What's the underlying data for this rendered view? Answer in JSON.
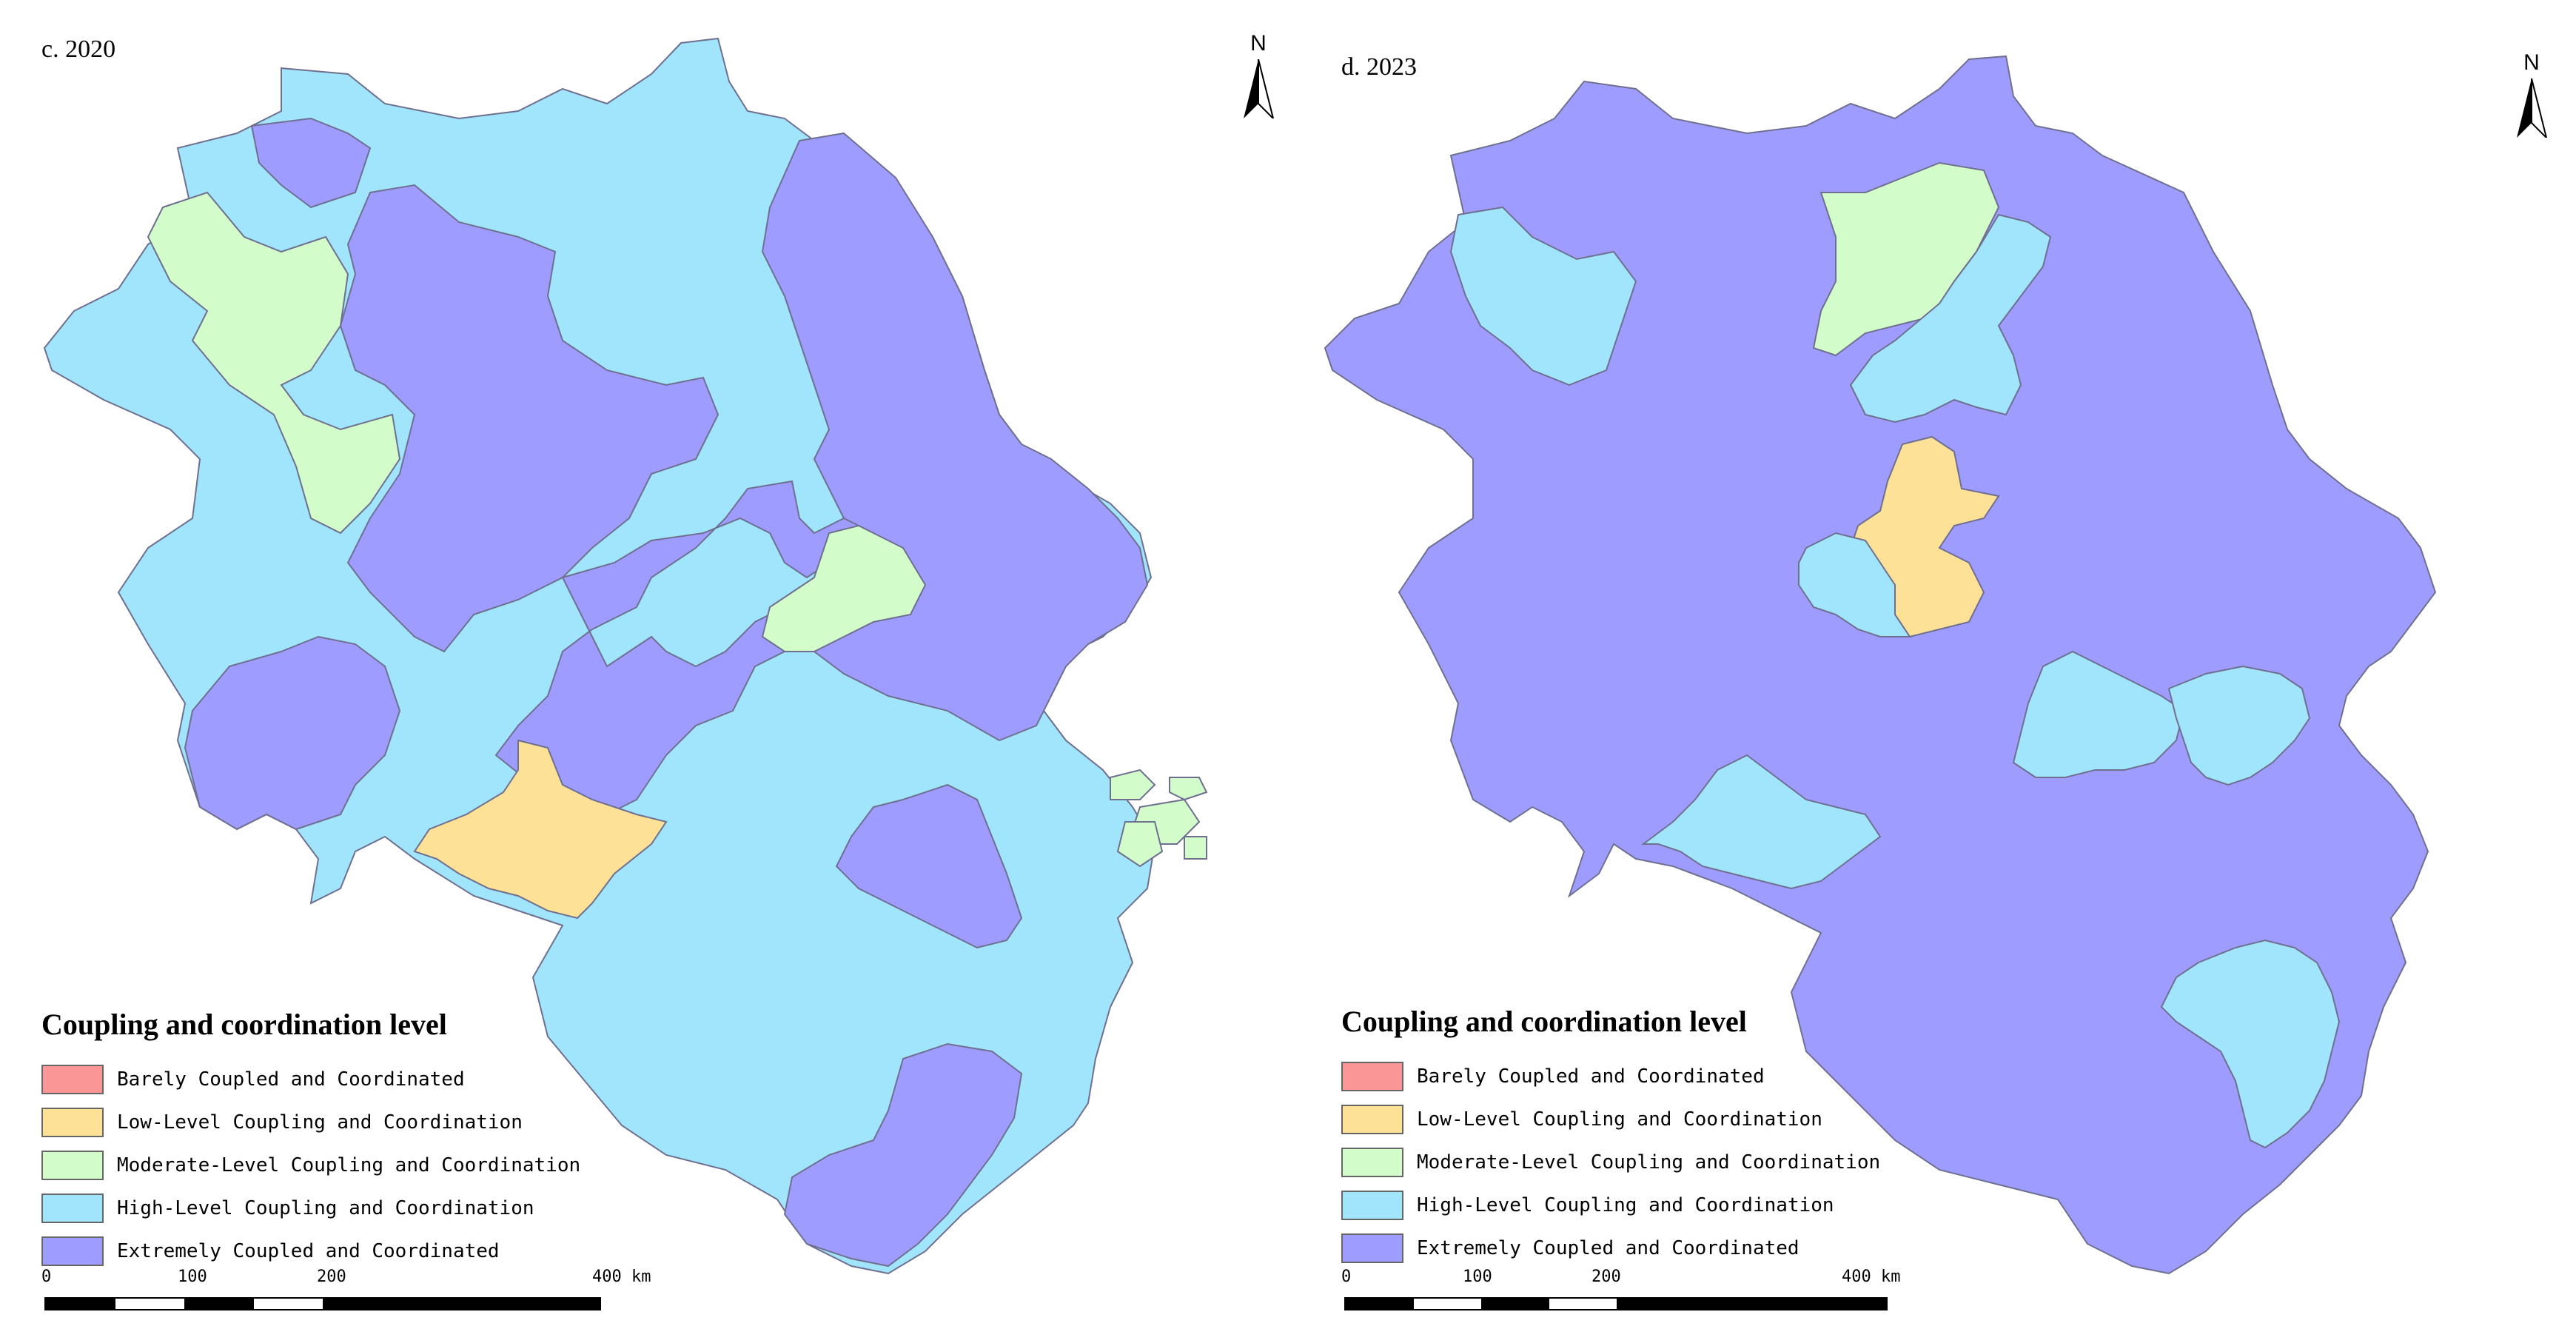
{
  "colors": {
    "barely": "#fa9696",
    "low": "#fde197",
    "moderate": "#d3fccb",
    "high": "#a0e5fb",
    "extreme": "#9e9dff",
    "boundary": "#6f6f8f",
    "sea": "#ffffff"
  },
  "legend": {
    "title": "Coupling and coordination level",
    "items": [
      {
        "key": "barely",
        "label": "Barely Coupled and Coordinated",
        "color": "#fa9696"
      },
      {
        "key": "low",
        "label": "Low-Level Coupling and Coordination",
        "color": "#fde197"
      },
      {
        "key": "moderate",
        "label": "Moderate-Level Coupling and Coordination",
        "color": "#d3fccb"
      },
      {
        "key": "high",
        "label": "High-Level Coupling and Coordination",
        "color": "#a0e5fb"
      },
      {
        "key": "extreme",
        "label": "Extremely Coupled and Coordinated",
        "color": "#9e9dff"
      }
    ]
  },
  "north_arrow": {
    "label": "N"
  },
  "scale": {
    "ticks": [
      "0",
      "100",
      "200",
      "400 km"
    ]
  },
  "panels": [
    {
      "id": "c",
      "title": "c. 2020",
      "base_level": "high",
      "region_levels": {
        "nw-low": "moderate",
        "north-purple-1": "extreme",
        "north-purple-2": "extreme",
        "east-coast": "extreme",
        "center-big": "extreme",
        "center-small": "moderate",
        "center-yellow": "low",
        "sw-purple": "extreme",
        "south-purple-1": "extreme",
        "south-purple-2": "extreme",
        "islands": "moderate"
      }
    },
    {
      "id": "d",
      "title": "d. 2023",
      "base_level": "extreme",
      "region_levels": {
        "nw-blue": "high",
        "north-green": "moderate",
        "north-blue": "high",
        "center-yellow": "low",
        "center-blue": "high",
        "sw-blue": "high",
        "mid-blue-1": "high",
        "mid-blue-2": "high",
        "south-blue": "high"
      }
    }
  ]
}
